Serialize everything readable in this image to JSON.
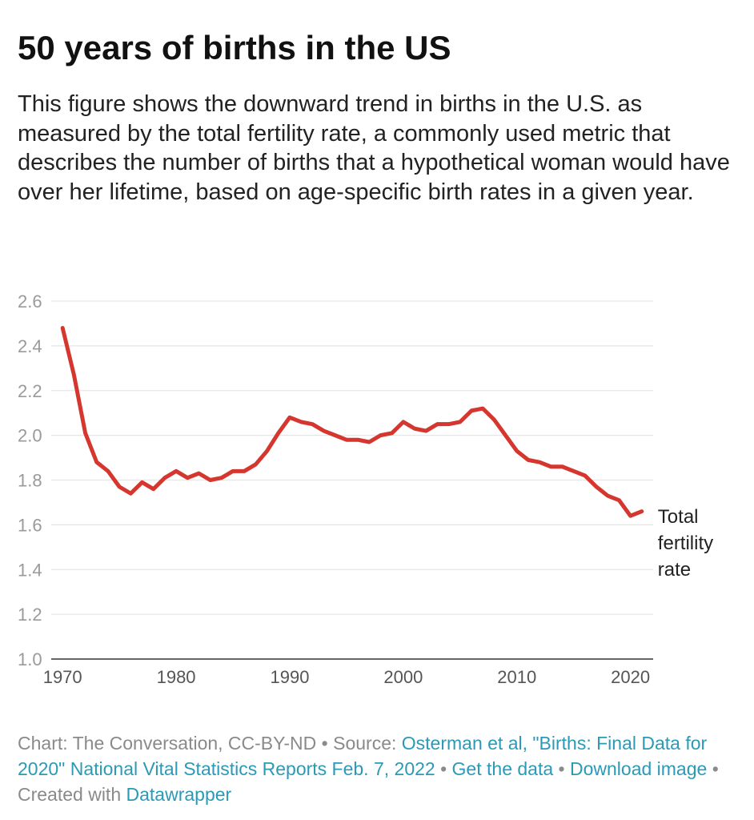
{
  "title": "50 years of births in the US",
  "description": "This figure shows the downward trend in births in the U.S. as measured by the total fertility rate, a commonly used metric that describes the number of births that a hypothetical woman would have over her lifetime, based on age-specific birth rates in a given year.",
  "colors": {
    "line": "#d5362e",
    "grid": "#e6e6e6",
    "link": "#2a9ab8"
  },
  "chart_data": {
    "type": "line",
    "title": "50 years of births in the US",
    "xlabel": "",
    "ylabel": "",
    "xlim": [
      1969,
      2022
    ],
    "ylim": [
      1.0,
      2.6
    ],
    "grid": true,
    "y_ticks": [
      "1.0",
      "1.2",
      "1.4",
      "1.6",
      "1.8",
      "2.0",
      "2.2",
      "2.4",
      "2.6"
    ],
    "x_ticks": [
      "1970",
      "1980",
      "1990",
      "2000",
      "2010",
      "2020"
    ],
    "series": [
      {
        "name": "Total fertility rate",
        "label_lines": [
          "Total",
          "fertility",
          "rate"
        ],
        "x": [
          1970,
          1971,
          1972,
          1973,
          1974,
          1975,
          1976,
          1977,
          1978,
          1979,
          1980,
          1981,
          1982,
          1983,
          1984,
          1985,
          1986,
          1987,
          1988,
          1989,
          1990,
          1991,
          1992,
          1993,
          1994,
          1995,
          1996,
          1997,
          1998,
          1999,
          2000,
          2001,
          2002,
          2003,
          2004,
          2005,
          2006,
          2007,
          2008,
          2009,
          2010,
          2011,
          2012,
          2013,
          2014,
          2015,
          2016,
          2017,
          2018,
          2019,
          2020,
          2021
        ],
        "values": [
          2.48,
          2.27,
          2.01,
          1.88,
          1.84,
          1.77,
          1.74,
          1.79,
          1.76,
          1.81,
          1.84,
          1.81,
          1.83,
          1.8,
          1.81,
          1.84,
          1.84,
          1.87,
          1.93,
          2.01,
          2.08,
          2.06,
          2.05,
          2.02,
          2.0,
          1.98,
          1.98,
          1.97,
          2.0,
          2.01,
          2.06,
          2.03,
          2.02,
          2.05,
          2.05,
          2.06,
          2.11,
          2.12,
          2.07,
          2.0,
          1.93,
          1.89,
          1.88,
          1.86,
          1.86,
          1.84,
          1.82,
          1.77,
          1.73,
          1.71,
          1.64,
          1.66
        ]
      }
    ]
  },
  "footer": {
    "chart_credit": "Chart: The Conversation, CC-BY-ND",
    "separator": " • ",
    "source_prefix": "Source: ",
    "source_link": "Osterman et al, \"Births: Final Data for 2020\" National Vital Statistics Reports Feb. 7, 2022",
    "get_data": "Get the data",
    "download_image": "Download image",
    "created_with_prefix": "Created with ",
    "datawrapper": "Datawrapper"
  }
}
